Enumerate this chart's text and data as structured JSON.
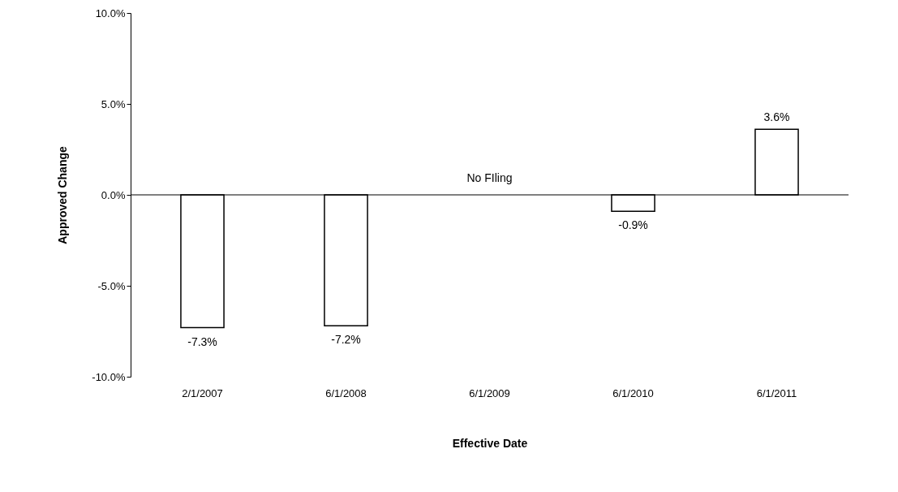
{
  "chart_data": {
    "type": "bar",
    "xlabel": "Effective Date",
    "ylabel": "Approved Change",
    "categories": [
      "2/1/2007",
      "6/1/2008",
      "6/1/2009",
      "6/1/2010",
      "6/1/2011"
    ],
    "values": [
      -7.3,
      -7.2,
      null,
      -0.9,
      3.6
    ],
    "value_labels": [
      "-7.3%",
      "-7.2%",
      null,
      "-0.9%",
      "3.6%"
    ],
    "color": "#ffffff",
    "ylim": [
      -10,
      10
    ],
    "yticks": [
      {
        "value": -10,
        "label": "-10.0%"
      },
      {
        "value": -5,
        "label": "-5.0%"
      },
      {
        "value": 0,
        "label": "0.0%"
      },
      {
        "value": 5,
        "label": "5.0%"
      },
      {
        "value": 10,
        "label": "10.0%"
      }
    ],
    "annotations": [
      "No FIling"
    ],
    "ref_lines": [
      {
        "axis": "y",
        "value": 0,
        "color": "#000000"
      }
    ],
    "grid": false
  }
}
